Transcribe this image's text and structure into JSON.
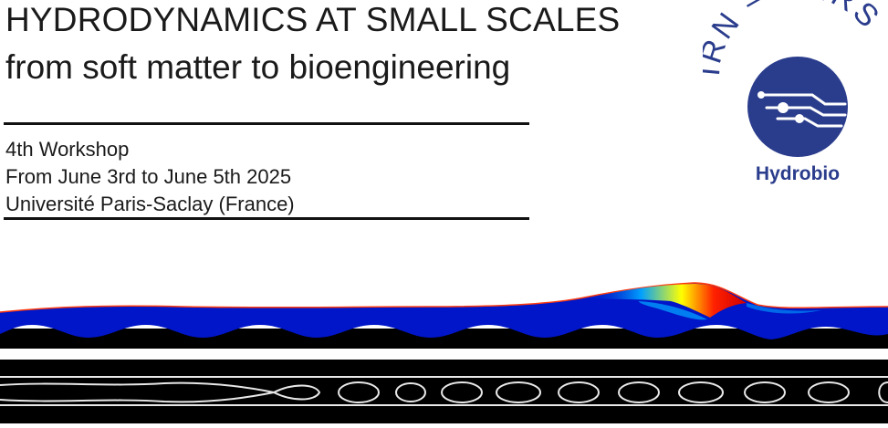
{
  "header": {
    "title_line1": "HYDRODYNAMICS AT SMALL SCALES",
    "title_line2": "from soft matter to bioengineering"
  },
  "event": {
    "edition": "4th Workshop",
    "dates": "From June 3rd to June 5th 2025",
    "venue": "Université Paris-Saclay (France)"
  },
  "logo": {
    "arc_text": "IRN – CNRS",
    "name": "Hydrobio",
    "circle_color": "#2a3c8c",
    "text_color": "#2a3c8c"
  },
  "figures": {
    "fluid_field_colors": [
      "#0016c8",
      "#00a0ff",
      "#ffff00",
      "#ff2000",
      "#d00000"
    ],
    "channel_color": "#000000",
    "droplet_outline_color": "#e8e8e8"
  }
}
